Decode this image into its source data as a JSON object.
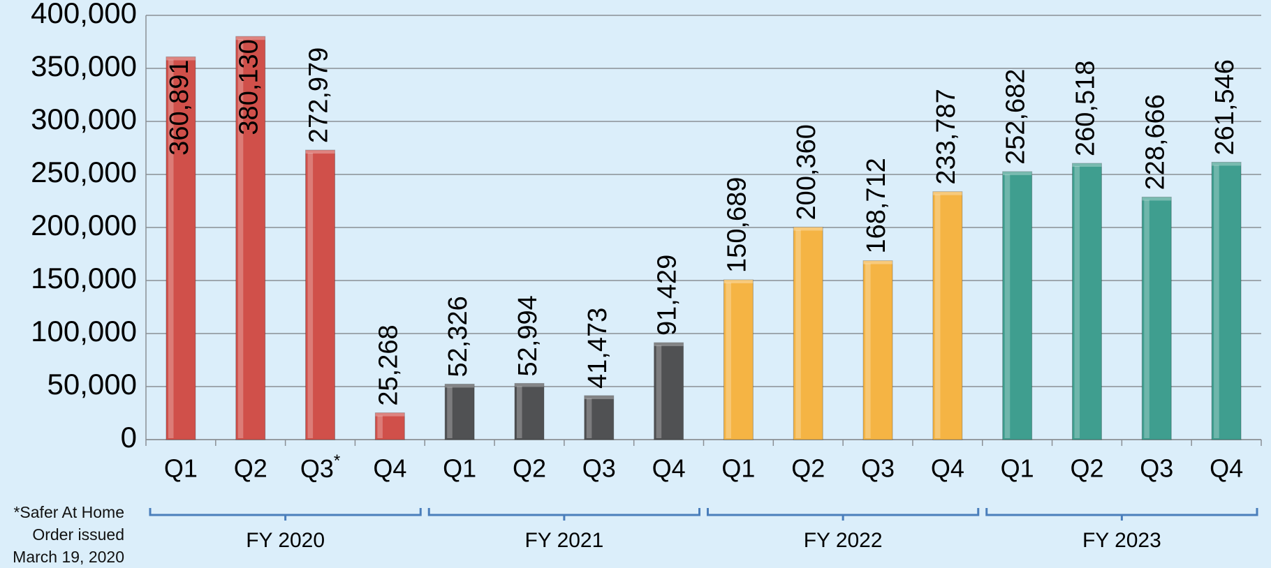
{
  "chart_data": {
    "type": "bar",
    "groups": [
      {
        "name": "FY 2020",
        "color": "#d0504a",
        "categories": [
          "Q1",
          "Q2",
          "Q3*",
          "Q4"
        ],
        "values": [
          360891,
          380130,
          272979,
          25268
        ],
        "value_labels": [
          "360,891",
          "380,130",
          "272,979",
          "25,268"
        ]
      },
      {
        "name": "FY 2021",
        "color": "#505153",
        "categories": [
          "Q1",
          "Q2",
          "Q3",
          "Q4"
        ],
        "values": [
          52326,
          52994,
          41473,
          91429
        ],
        "value_labels": [
          "52,326",
          "52,994",
          "41,473",
          "91,429"
        ]
      },
      {
        "name": "FY 2022",
        "color": "#f5b444",
        "categories": [
          "Q1",
          "Q2",
          "Q3",
          "Q4"
        ],
        "values": [
          150689,
          200360,
          168712,
          233787
        ],
        "value_labels": [
          "150,689",
          "200,360",
          "168,712",
          "233,787"
        ]
      },
      {
        "name": "FY 2023",
        "color": "#3f9e8f",
        "categories": [
          "Q1",
          "Q2",
          "Q3",
          "Q4"
        ],
        "values": [
          252682,
          260518,
          228666,
          261546
        ],
        "value_labels": [
          "252,682",
          "260,518",
          "228,666",
          "261,546"
        ]
      }
    ],
    "ylim": [
      0,
      400000
    ],
    "yticks": [
      0,
      {
        "value": 50000,
        "label": "50,000"
      },
      {
        "value": 100000,
        "label": "100,000"
      },
      {
        "value": 150000,
        "label": "150,000"
      },
      {
        "value": 200000,
        "label": "200,000"
      },
      {
        "value": 250000,
        "label": "250,000"
      },
      {
        "value": 300000,
        "label": "300,000"
      },
      {
        "value": 350000,
        "label": "350,000"
      },
      {
        "value": 400000,
        "label": "400,000"
      }
    ],
    "grid": true,
    "footnote": [
      "*Safer At Home",
      "Order issued",
      "March 19, 2020"
    ]
  }
}
